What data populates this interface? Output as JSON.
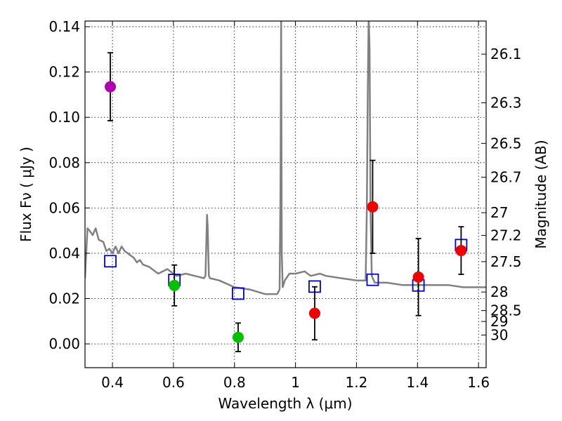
{
  "chart_data": {
    "type": "scatter",
    "title": "",
    "xlabel": "Wavelength  λ (μm)",
    "ylabel": "Flux  Fν  ( μJy )",
    "ylabel_right": "Magnitude (AB)",
    "xlim": [
      0.31,
      1.625
    ],
    "ylim": [
      -0.0105,
      0.1425
    ],
    "grid": true,
    "x_ticks": [
      0.4,
      0.6,
      0.8,
      1.0,
      1.2,
      1.4,
      1.6
    ],
    "x_tick_labels": [
      "0.4",
      "0.6",
      "0.8",
      "1",
      "1.2",
      "1.4",
      "1.6"
    ],
    "y_ticks": [
      0.0,
      0.02,
      0.04,
      0.06,
      0.08,
      0.1,
      0.12,
      0.14
    ],
    "y_tick_labels": [
      "0.00",
      "0.02",
      "0.04",
      "0.06",
      "0.08",
      "0.10",
      "0.12",
      "0.14"
    ],
    "right_ticks": [
      {
        "label": "26.1",
        "flux": 0.1279
      },
      {
        "label": "26.3",
        "flux": 0.1064
      },
      {
        "label": "26.5",
        "flux": 0.0885
      },
      {
        "label": "26.7",
        "flux": 0.0736
      },
      {
        "label": "27",
        "flux": 0.0579
      },
      {
        "label": "27.2",
        "flux": 0.0479
      },
      {
        "label": "27.5",
        "flux": 0.0363
      },
      {
        "label": "28",
        "flux": 0.0229
      },
      {
        "label": "28.5",
        "flux": 0.0147
      },
      {
        "label": "29",
        "flux": 0.0099
      },
      {
        "label": "30",
        "flux": 0.0039
      }
    ],
    "series": [
      {
        "name": "template spectrum",
        "kind": "line",
        "color": "#808080",
        "x": [
          0.31,
          0.318,
          0.325,
          0.335,
          0.345,
          0.355,
          0.37,
          0.38,
          0.39,
          0.4,
          0.41,
          0.42,
          0.43,
          0.44,
          0.45,
          0.46,
          0.47,
          0.48,
          0.49,
          0.5,
          0.52,
          0.55,
          0.58,
          0.61,
          0.64,
          0.67,
          0.7,
          0.705,
          0.71,
          0.712,
          0.716,
          0.72,
          0.75,
          0.8,
          0.85,
          0.9,
          0.94,
          0.948,
          0.951,
          0.953,
          0.955,
          0.958,
          0.965,
          0.98,
          1.0,
          1.03,
          1.05,
          1.08,
          1.1,
          1.15,
          1.2,
          1.23,
          1.234,
          1.237,
          1.24,
          1.243,
          1.246,
          1.25,
          1.26,
          1.3,
          1.35,
          1.4,
          1.45,
          1.5,
          1.55,
          1.6,
          1.625
        ],
        "y": [
          0.029,
          0.051,
          0.05,
          0.048,
          0.051,
          0.046,
          0.045,
          0.041,
          0.042,
          0.04,
          0.043,
          0.04,
          0.043,
          0.041,
          0.04,
          0.039,
          0.038,
          0.036,
          0.037,
          0.035,
          0.034,
          0.031,
          0.033,
          0.03,
          0.031,
          0.03,
          0.029,
          0.03,
          0.057,
          0.052,
          0.03,
          0.029,
          0.028,
          0.025,
          0.024,
          0.022,
          0.022,
          0.024,
          0.07,
          0.145,
          0.04,
          0.025,
          0.028,
          0.031,
          0.031,
          0.032,
          0.03,
          0.031,
          0.03,
          0.029,
          0.028,
          0.028,
          0.06,
          0.11,
          0.145,
          0.13,
          0.06,
          0.03,
          0.027,
          0.027,
          0.026,
          0.026,
          0.026,
          0.026,
          0.025,
          0.025,
          0.025
        ]
      },
      {
        "name": "model photometry",
        "kind": "open-square",
        "color": "#0000cc",
        "x": [
          0.393,
          0.603,
          0.812,
          1.063,
          1.253,
          1.403,
          1.543
        ],
        "y": [
          0.0365,
          0.0282,
          0.0222,
          0.0253,
          0.0283,
          0.0258,
          0.0436
        ]
      },
      {
        "name": "UV band",
        "kind": "filled-circle",
        "color": "#b000b0",
        "x": [
          0.393
        ],
        "y": [
          0.1135
        ],
        "err": [
          0.015
        ]
      },
      {
        "name": "optical bands",
        "kind": "filled-circle",
        "color": "#00c000",
        "x": [
          0.603,
          0.812
        ],
        "y": [
          0.0258,
          0.0029
        ],
        "err": [
          0.009,
          0.0063
        ]
      },
      {
        "name": "near-infrared bands",
        "kind": "filled-circle",
        "color": "#ee0000",
        "x": [
          1.063,
          1.253,
          1.403,
          1.543
        ],
        "y": [
          0.0135,
          0.0605,
          0.0295,
          0.0412
        ],
        "err": [
          0.0117,
          0.0205,
          0.017,
          0.0105
        ]
      }
    ]
  }
}
